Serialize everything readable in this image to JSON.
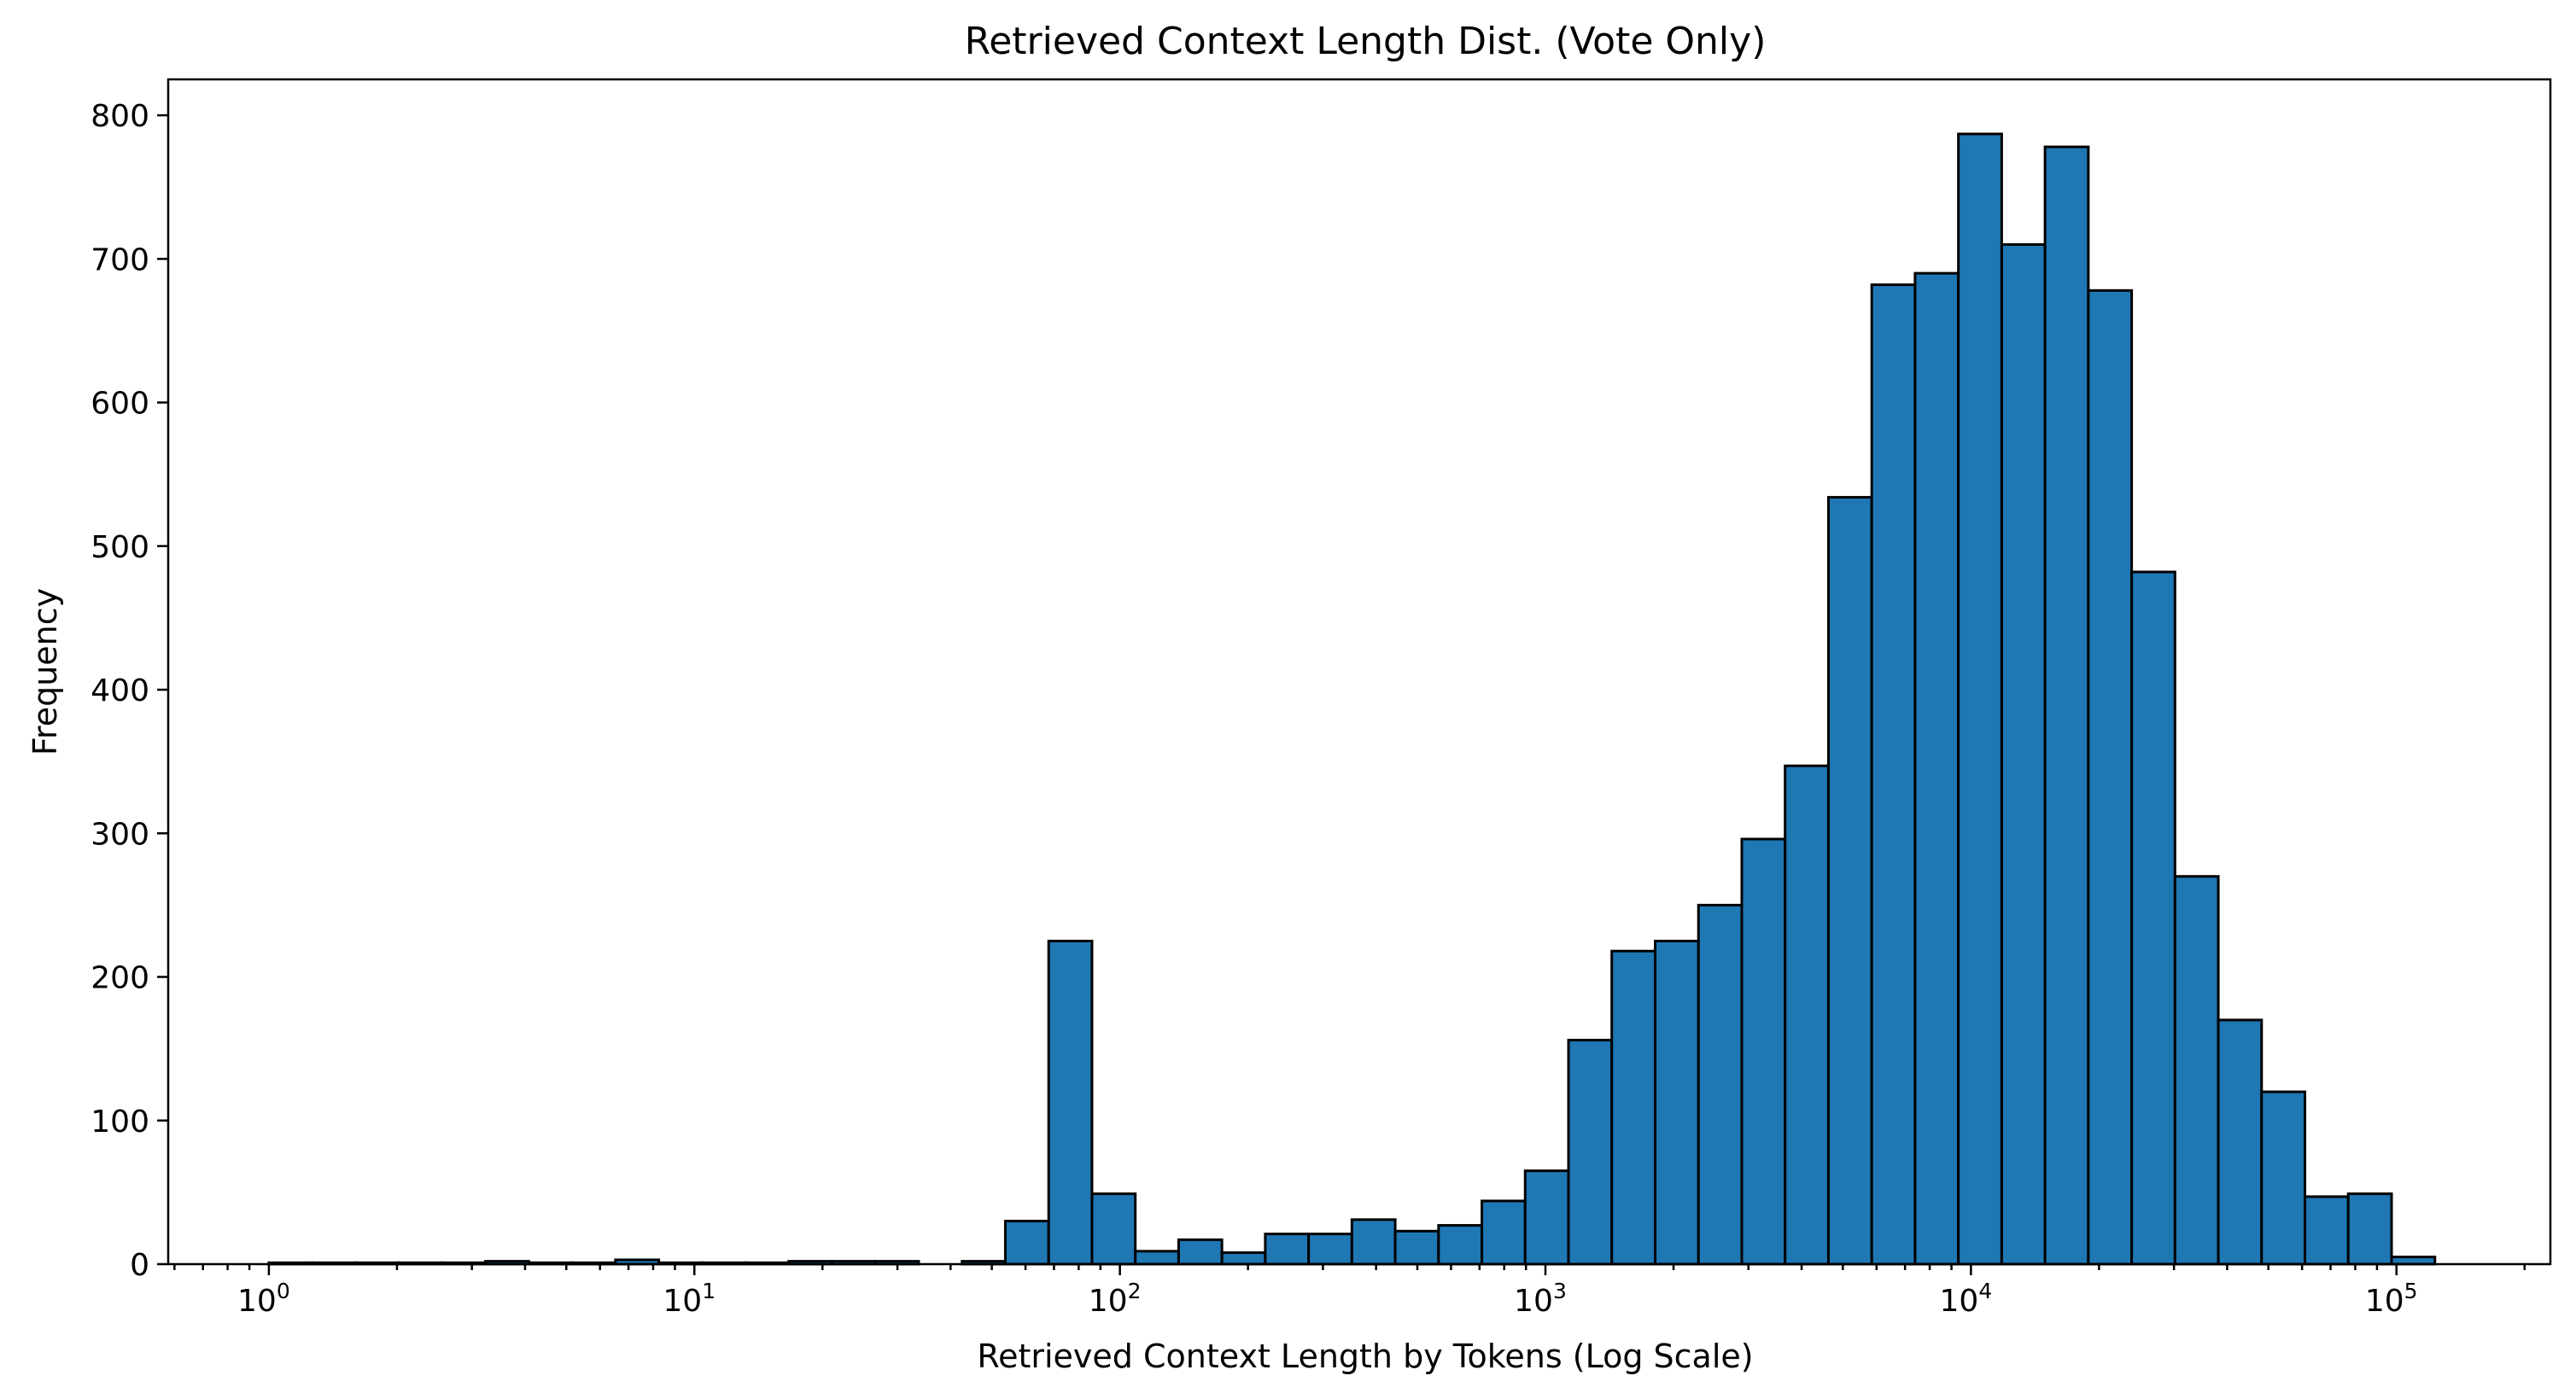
{
  "chart_data": {
    "type": "bar",
    "title": "Retrieved Context Length Dist. (Vote Only)",
    "xlabel": "Retrieved Context Length by Tokens (Log Scale)",
    "ylabel": "Frequency",
    "xscale": "log",
    "xlim": [
      0.58,
      230000
    ],
    "ylim": [
      0,
      825
    ],
    "grid": false,
    "legend": "none",
    "bar_color": "#1f77b4",
    "edge_color": "#000000",
    "x_ticks": [
      {
        "base": "10",
        "exp": "0",
        "value": 1
      },
      {
        "base": "10",
        "exp": "1",
        "value": 10
      },
      {
        "base": "10",
        "exp": "2",
        "value": 100
      },
      {
        "base": "10",
        "exp": "3",
        "value": 1000
      },
      {
        "base": "10",
        "exp": "4",
        "value": 10000
      },
      {
        "base": "10",
        "exp": "5",
        "value": 100000
      }
    ],
    "y_ticks": [
      "0",
      "100",
      "200",
      "300",
      "400",
      "500",
      "600",
      "700",
      "800"
    ],
    "bin_edges": [
      1,
      1.264,
      1.598,
      2.021,
      2.555,
      3.229,
      4.082,
      5.161,
      6.524,
      8.248,
      10.426,
      13.181,
      16.663,
      21.065,
      26.629,
      33.664,
      42.558,
      53.801,
      68.013,
      85.98,
      108.69,
      137.4,
      173.7,
      219.6,
      277.6,
      350.9,
      443.6,
      560.8,
      709.0,
      896.2,
      1133,
      1432,
      1811,
      2289,
      2894,
      3658,
      4625,
      5846,
      7391,
      9343,
      11811,
      14931,
      18875,
      23862,
      30165,
      38134,
      48207,
      60942,
      77040,
      97390,
      123116
    ],
    "values": [
      1,
      1,
      1,
      1,
      1,
      2,
      1,
      1,
      3,
      1,
      1,
      1,
      2,
      2,
      2,
      0,
      2,
      30,
      225,
      49,
      9,
      17,
      8,
      21,
      21,
      31,
      23,
      27,
      44,
      65,
      156,
      218,
      225,
      250,
      296,
      347,
      534,
      682,
      690,
      787,
      710,
      778,
      678,
      482,
      270,
      170,
      120,
      47,
      49,
      5
    ]
  }
}
